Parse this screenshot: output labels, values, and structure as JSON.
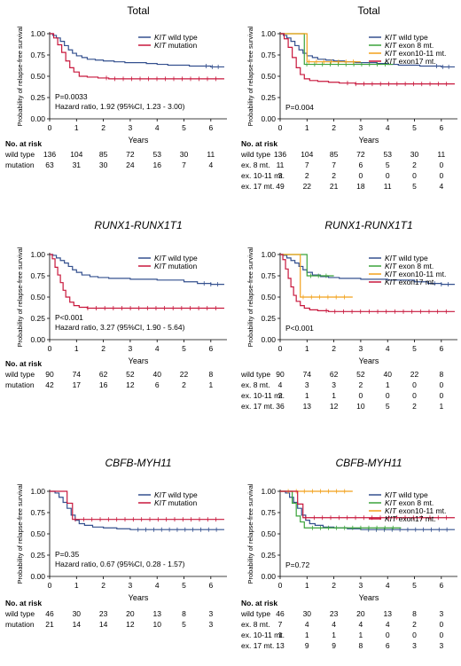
{
  "chart_data": [
    {
      "type": "line",
      "title": "Total",
      "title_italic": false,
      "xlabel": "Years",
      "ylabel": "Probability of relapse-free survival",
      "xlim": [
        0,
        6.6
      ],
      "ylim": [
        0,
        1.0
      ],
      "xticks": [
        0,
        1,
        2,
        3,
        4,
        5,
        6
      ],
      "yticks": [
        "0.00",
        "0.25",
        "0.50",
        "0.75",
        "1.00"
      ],
      "legend": "top-right",
      "annotations": [
        "P=0.0033",
        "Hazard ratio, 1.92 (95%CI, 1.23 - 3.00)"
      ],
      "series": [
        {
          "name": "KIT wild type",
          "color": "#34508f",
          "x": [
            0,
            0.12,
            0.25,
            0.4,
            0.55,
            0.7,
            0.85,
            1.0,
            1.2,
            1.4,
            1.7,
            2.0,
            2.4,
            2.8,
            3.2,
            3.6,
            4.0,
            4.4,
            4.8,
            5.2,
            5.6,
            6.0,
            6.5
          ],
          "y": [
            1.0,
            0.98,
            0.95,
            0.91,
            0.86,
            0.81,
            0.77,
            0.74,
            0.72,
            0.7,
            0.69,
            0.68,
            0.67,
            0.66,
            0.66,
            0.65,
            0.64,
            0.63,
            0.63,
            0.62,
            0.62,
            0.61,
            0.61
          ]
        },
        {
          "name": "KIT mutation",
          "color": "#c8173c",
          "x": [
            0,
            0.15,
            0.3,
            0.45,
            0.6,
            0.75,
            0.9,
            1.1,
            1.4,
            1.8,
            2.2,
            6.5
          ],
          "y": [
            1.0,
            0.95,
            0.87,
            0.78,
            0.68,
            0.6,
            0.55,
            0.5,
            0.49,
            0.48,
            0.47,
            0.47
          ]
        }
      ],
      "risk_table": {
        "heading": "No. at risk",
        "rows": [
          {
            "label": "wild type",
            "values": [
              "136",
              "104",
              "85",
              "72",
              "53",
              "30",
              "11"
            ]
          },
          {
            "label": "mutation",
            "values": [
              "63",
              "31",
              "30",
              "24",
              "16",
              "7",
              "4"
            ]
          }
        ]
      }
    },
    {
      "type": "line",
      "title": "Total",
      "title_italic": false,
      "xlabel": "Years",
      "ylabel": "Probability of relapse-free survival",
      "xlim": [
        0,
        6.6
      ],
      "ylim": [
        0,
        1.0
      ],
      "xticks": [
        0,
        1,
        2,
        3,
        4,
        5,
        6
      ],
      "yticks": [
        "0.00",
        "0.25",
        "0.50",
        "0.75",
        "1.00"
      ],
      "legend": "top-right",
      "annotations": [
        "P=0.004"
      ],
      "series": [
        {
          "name": "KIT wild type",
          "color": "#34508f",
          "x": [
            0,
            0.12,
            0.25,
            0.4,
            0.55,
            0.7,
            0.85,
            1.0,
            1.2,
            1.4,
            1.7,
            2.0,
            2.4,
            2.8,
            3.2,
            3.6,
            4.0,
            4.4,
            4.8,
            5.2,
            5.6,
            6.0,
            6.5
          ],
          "y": [
            1.0,
            0.98,
            0.95,
            0.91,
            0.86,
            0.81,
            0.77,
            0.74,
            0.72,
            0.7,
            0.69,
            0.68,
            0.67,
            0.66,
            0.66,
            0.65,
            0.64,
            0.63,
            0.63,
            0.62,
            0.62,
            0.61,
            0.61
          ]
        },
        {
          "name": "KIT exon 8 mt.",
          "color": "#3aa33a",
          "x": [
            0,
            0.7,
            0.9,
            4.2
          ],
          "y": [
            1.0,
            1.0,
            0.64,
            0.64
          ]
        },
        {
          "name": "KIT exon10-11 mt.",
          "color": "#f2a11a",
          "x": [
            0,
            0.8,
            1.0,
            3.0
          ],
          "y": [
            1.0,
            1.0,
            0.67,
            0.67
          ]
        },
        {
          "name": "KIT exon17 mt.",
          "color": "#c8173c",
          "x": [
            0,
            0.15,
            0.3,
            0.45,
            0.6,
            0.75,
            0.9,
            1.1,
            1.4,
            1.8,
            2.2,
            2.8,
            6.5
          ],
          "y": [
            1.0,
            0.94,
            0.84,
            0.72,
            0.6,
            0.52,
            0.47,
            0.45,
            0.44,
            0.43,
            0.42,
            0.41,
            0.41
          ]
        }
      ],
      "risk_table": {
        "heading": "No. at risk",
        "rows": [
          {
            "label": "wild type",
            "values": [
              "136",
              "104",
              "85",
              "72",
              "53",
              "30",
              "11"
            ]
          },
          {
            "label": "ex. 8 mt.",
            "values": [
              "11",
              "7",
              "7",
              "6",
              "5",
              "2",
              "0"
            ]
          },
          {
            "label": "ex. 10-11 mt.",
            "values": [
              "3",
              "2",
              "2",
              "0",
              "0",
              "0",
              "0"
            ]
          },
          {
            "label": "ex. 17 mt.",
            "values": [
              "49",
              "22",
              "21",
              "18",
              "11",
              "5",
              "4"
            ]
          }
        ]
      }
    },
    {
      "type": "line",
      "title": "RUNX1-RUNX1T1",
      "title_italic": true,
      "xlabel": "Years",
      "ylabel": "Probability of relapse-free survival",
      "xlim": [
        0,
        6.6
      ],
      "ylim": [
        0,
        1.0
      ],
      "xticks": [
        0,
        1,
        2,
        3,
        4,
        5,
        6
      ],
      "yticks": [
        "0.00",
        "0.25",
        "0.50",
        "0.75",
        "1.00"
      ],
      "legend": "top-right",
      "annotations": [
        "P<0.001",
        "Hazard ratio, 3.27 (95%CI, 1.90 - 5.64)"
      ],
      "series": [
        {
          "name": "KIT wild type",
          "color": "#34508f",
          "x": [
            0,
            0.12,
            0.25,
            0.4,
            0.55,
            0.7,
            0.85,
            1.0,
            1.2,
            1.5,
            1.8,
            2.2,
            2.6,
            3.0,
            3.5,
            4.0,
            4.5,
            5.0,
            5.5,
            6.0,
            6.5
          ],
          "y": [
            1.0,
            0.99,
            0.96,
            0.93,
            0.9,
            0.86,
            0.82,
            0.79,
            0.76,
            0.74,
            0.73,
            0.72,
            0.72,
            0.71,
            0.71,
            0.7,
            0.7,
            0.68,
            0.66,
            0.65,
            0.65
          ]
        },
        {
          "name": "KIT mutation",
          "color": "#c8173c",
          "x": [
            0,
            0.1,
            0.2,
            0.3,
            0.4,
            0.5,
            0.6,
            0.75,
            0.9,
            1.1,
            1.4,
            6.5
          ],
          "y": [
            1.0,
            0.95,
            0.85,
            0.76,
            0.67,
            0.58,
            0.5,
            0.44,
            0.4,
            0.38,
            0.37,
            0.37
          ]
        }
      ],
      "risk_table": {
        "heading": "No. at risk",
        "rows": [
          {
            "label": "wild type",
            "values": [
              "90",
              "74",
              "62",
              "52",
              "40",
              "22",
              "8"
            ]
          },
          {
            "label": "mutation",
            "values": [
              "42",
              "17",
              "16",
              "12",
              "6",
              "2",
              "1"
            ]
          }
        ]
      }
    },
    {
      "type": "line",
      "title": "RUNX1-RUNX1T1",
      "title_italic": true,
      "xlabel": "Years",
      "ylabel": "Probability of relapse-free survival",
      "xlim": [
        0,
        6.6
      ],
      "ylim": [
        0,
        1.0
      ],
      "xticks": [
        0,
        1,
        2,
        3,
        4,
        5,
        6
      ],
      "yticks": [
        "0.00",
        "0.25",
        "0.50",
        "0.75",
        "1.00"
      ],
      "legend": "top-right",
      "annotations": [
        "P<0.001"
      ],
      "series": [
        {
          "name": "KIT wild type",
          "color": "#34508f",
          "x": [
            0,
            0.12,
            0.25,
            0.4,
            0.55,
            0.7,
            0.85,
            1.0,
            1.2,
            1.5,
            1.8,
            2.2,
            2.6,
            3.0,
            3.5,
            4.0,
            4.5,
            5.0,
            5.5,
            6.0,
            6.5
          ],
          "y": [
            1.0,
            0.99,
            0.96,
            0.93,
            0.9,
            0.86,
            0.82,
            0.79,
            0.76,
            0.74,
            0.73,
            0.72,
            0.72,
            0.71,
            0.71,
            0.7,
            0.7,
            0.68,
            0.66,
            0.65,
            0.65
          ]
        },
        {
          "name": "KIT exon 8 mt.",
          "color": "#3aa33a",
          "x": [
            0,
            0.85,
            1.0,
            2.0
          ],
          "y": [
            1.0,
            1.0,
            0.75,
            0.75
          ]
        },
        {
          "name": "KIT exon10-11 mt.",
          "color": "#f2a11a",
          "x": [
            0,
            0.55,
            0.75,
            2.7
          ],
          "y": [
            1.0,
            1.0,
            0.5,
            0.5
          ]
        },
        {
          "name": "KIT exon17 mt.",
          "color": "#c8173c",
          "x": [
            0,
            0.1,
            0.2,
            0.3,
            0.4,
            0.5,
            0.6,
            0.75,
            0.9,
            1.1,
            1.4,
            1.8,
            6.5
          ],
          "y": [
            1.0,
            0.94,
            0.83,
            0.72,
            0.62,
            0.52,
            0.45,
            0.4,
            0.37,
            0.35,
            0.34,
            0.33,
            0.33
          ]
        }
      ],
      "risk_table": {
        "heading": "",
        "rows": [
          {
            "label": "wild type",
            "values": [
              "90",
              "74",
              "62",
              "52",
              "40",
              "22",
              "8"
            ]
          },
          {
            "label": "ex. 8 mt.",
            "values": [
              "4",
              "3",
              "3",
              "2",
              "1",
              "0",
              "0"
            ]
          },
          {
            "label": "ex. 10-11 mt.",
            "values": [
              "2",
              "1",
              "1",
              "0",
              "0",
              "0",
              "0"
            ]
          },
          {
            "label": "ex. 17 mt.",
            "values": [
              "36",
              "13",
              "12",
              "10",
              "5",
              "2",
              "1"
            ]
          }
        ]
      }
    },
    {
      "type": "line",
      "title": "CBFB-MYH11",
      "title_italic": true,
      "xlabel": "Years",
      "ylabel": "Probability of relapse-free survival",
      "xlim": [
        0,
        6.6
      ],
      "ylim": [
        0,
        1.0
      ],
      "xticks": [
        0,
        1,
        2,
        3,
        4,
        5,
        6
      ],
      "yticks": [
        "0.00",
        "0.25",
        "0.50",
        "0.75",
        "1.00"
      ],
      "legend": "top-right",
      "annotations": [
        "P=0.35",
        "Hazard ratio, 0.67 (95%CI, 0.28 - 1.57)"
      ],
      "series": [
        {
          "name": "KIT wild type",
          "color": "#34508f",
          "x": [
            0,
            0.2,
            0.35,
            0.5,
            0.65,
            0.8,
            0.95,
            1.1,
            1.3,
            1.6,
            2.0,
            2.5,
            3.0,
            4.0,
            6.5
          ],
          "y": [
            1.0,
            0.98,
            0.93,
            0.87,
            0.8,
            0.72,
            0.66,
            0.62,
            0.6,
            0.58,
            0.57,
            0.56,
            0.55,
            0.55,
            0.55
          ]
        },
        {
          "name": "KIT mutation",
          "color": "#c8173c",
          "x": [
            0,
            0.45,
            0.65,
            0.85,
            6.5
          ],
          "y": [
            1.0,
            1.0,
            0.86,
            0.67,
            0.67
          ]
        }
      ],
      "risk_table": {
        "heading": "No. at risk",
        "rows": [
          {
            "label": "wild type",
            "values": [
              "46",
              "30",
              "23",
              "20",
              "13",
              "8",
              "3"
            ]
          },
          {
            "label": "mutation",
            "values": [
              "21",
              "14",
              "14",
              "12",
              "10",
              "5",
              "3"
            ]
          }
        ]
      }
    },
    {
      "type": "line",
      "title": "CBFB-MYH11",
      "title_italic": true,
      "xlabel": "Years",
      "ylabel": "Probability of relapse-free survival",
      "xlim": [
        0,
        6.6
      ],
      "ylim": [
        0,
        1.0
      ],
      "xticks": [
        0,
        1,
        2,
        3,
        4,
        5,
        6
      ],
      "yticks": [
        "0.00",
        "0.25",
        "0.50",
        "0.75",
        "1.00"
      ],
      "legend": "top-right",
      "annotations": [
        "P=0.72"
      ],
      "series": [
        {
          "name": "KIT wild type",
          "color": "#34508f",
          "x": [
            0,
            0.2,
            0.35,
            0.5,
            0.65,
            0.8,
            0.95,
            1.1,
            1.3,
            1.6,
            2.0,
            2.5,
            3.0,
            4.0,
            6.5
          ],
          "y": [
            1.0,
            0.98,
            0.93,
            0.87,
            0.8,
            0.72,
            0.66,
            0.62,
            0.6,
            0.58,
            0.57,
            0.56,
            0.55,
            0.55,
            0.55
          ]
        },
        {
          "name": "KIT exon 8 mt.",
          "color": "#3aa33a",
          "x": [
            0,
            0.3,
            0.45,
            0.6,
            0.75,
            0.9,
            1.2,
            4.5
          ],
          "y": [
            1.0,
            1.0,
            0.86,
            0.71,
            0.64,
            0.57,
            0.57,
            0.57
          ]
        },
        {
          "name": "KIT exon10-11 mt.",
          "color": "#f2a11a",
          "x": [
            0,
            2.7
          ],
          "y": [
            1.0,
            1.0
          ]
        },
        {
          "name": "KIT exon17 mt.",
          "color": "#c8173c",
          "x": [
            0,
            0.45,
            0.65,
            0.85,
            6.5
          ],
          "y": [
            1.0,
            1.0,
            0.85,
            0.69,
            0.69
          ]
        }
      ],
      "risk_table": {
        "heading": "No. at risk",
        "rows": [
          {
            "label": "wild type",
            "values": [
              "46",
              "30",
              "23",
              "20",
              "13",
              "8",
              "3"
            ]
          },
          {
            "label": "ex. 8 mt.",
            "values": [
              "7",
              "4",
              "4",
              "4",
              "4",
              "2",
              "0"
            ]
          },
          {
            "label": "ex. 10-11 mt.",
            "values": [
              "1",
              "1",
              "1",
              "1",
              "0",
              "0",
              "0"
            ]
          },
          {
            "label": "ex. 17 mt.",
            "values": [
              "13",
              "9",
              "9",
              "8",
              "6",
              "3",
              "3"
            ]
          }
        ]
      }
    }
  ]
}
